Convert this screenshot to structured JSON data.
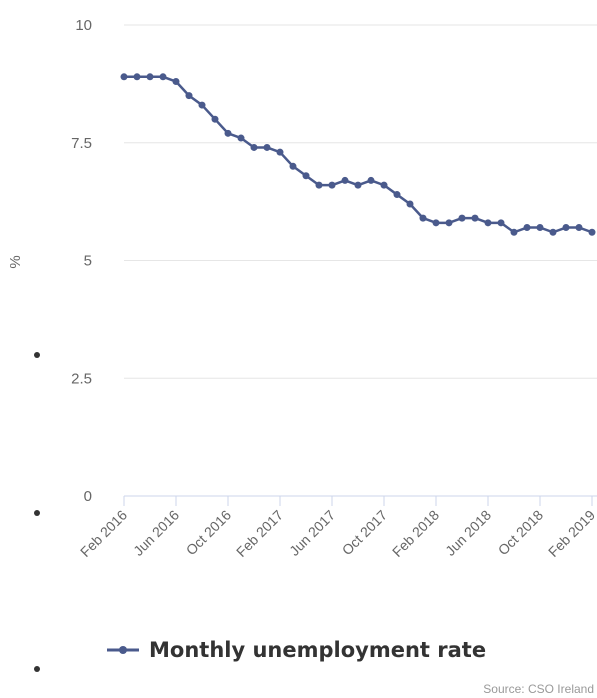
{
  "chart_data": {
    "type": "line",
    "ylabel": "%",
    "ylim": [
      0,
      10
    ],
    "y_ticks": [
      {
        "value": 0,
        "label": "0"
      },
      {
        "value": 2.5,
        "label": "2.5"
      },
      {
        "value": 5,
        "label": "5"
      },
      {
        "value": 7.5,
        "label": "7.5"
      },
      {
        "value": 10,
        "label": "10"
      }
    ],
    "x_tick_labels": [
      "Feb 2016",
      "Jun 2016",
      "Oct 2016",
      "Feb 2017",
      "Jun 2017",
      "Oct 2017",
      "Feb 2018",
      "Jun 2018",
      "Oct 2018",
      "Feb 2019"
    ],
    "x": [
      "Feb 2016",
      "Mar 2016",
      "Apr 2016",
      "May 2016",
      "Jun 2016",
      "Jul 2016",
      "Aug 2016",
      "Sep 2016",
      "Oct 2016",
      "Nov 2016",
      "Dec 2016",
      "Jan 2017",
      "Feb 2017",
      "Mar 2017",
      "Apr 2017",
      "May 2017",
      "Jun 2017",
      "Jul 2017",
      "Aug 2017",
      "Sep 2017",
      "Oct 2017",
      "Nov 2017",
      "Dec 2017",
      "Jan 2018",
      "Feb 2018",
      "Mar 2018",
      "Apr 2018",
      "May 2018",
      "Jun 2018",
      "Jul 2018",
      "Aug 2018",
      "Sep 2018",
      "Oct 2018",
      "Nov 2018",
      "Dec 2018",
      "Jan 2019",
      "Feb 2019"
    ],
    "series": [
      {
        "name": "Monthly unemployment rate",
        "color": "#4a5a8c",
        "values": [
          8.9,
          8.9,
          8.9,
          8.9,
          8.8,
          8.5,
          8.3,
          8.0,
          7.7,
          7.6,
          7.4,
          7.4,
          7.3,
          7.0,
          6.8,
          6.6,
          6.6,
          6.7,
          6.6,
          6.7,
          6.6,
          6.4,
          6.2,
          5.9,
          5.8,
          5.8,
          5.9,
          5.9,
          5.8,
          5.8,
          5.6,
          5.7,
          5.7,
          5.6,
          5.7,
          5.7,
          5.6
        ]
      }
    ],
    "grid": true,
    "legend": "bottom-center"
  },
  "credit": "Source: CSO Ireland",
  "colors": {
    "gridline": "#e6e6e6",
    "axis": "#ccd6eb",
    "text": "#666666",
    "bullet": "#333333"
  }
}
